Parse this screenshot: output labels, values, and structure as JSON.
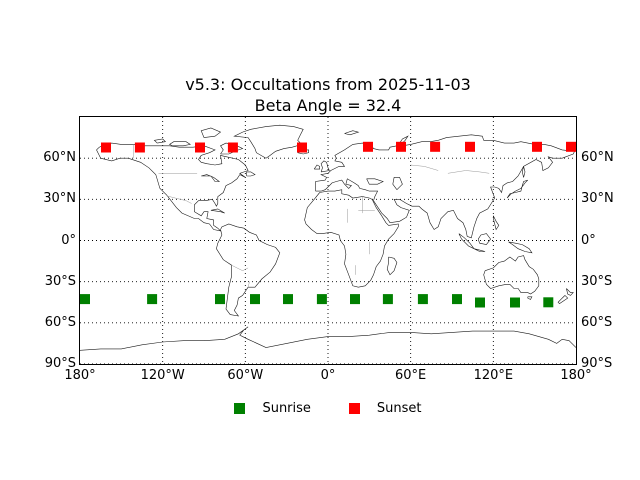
{
  "title": {
    "line1": "v5.3: Occultations from 2025-11-03",
    "line2": "Beta Angle = 32.4"
  },
  "axes": {
    "x_ticks": [
      {
        "label": "180°",
        "lon": -180
      },
      {
        "label": "120°W",
        "lon": -120
      },
      {
        "label": "60°W",
        "lon": -60
      },
      {
        "label": "0°",
        "lon": 0
      },
      {
        "label": "60°E",
        "lon": 60
      },
      {
        "label": "120°E",
        "lon": 120
      },
      {
        "label": "180°",
        "lon": 180
      }
    ],
    "y_ticks": [
      {
        "label": "60°N",
        "lat": 60
      },
      {
        "label": "30°N",
        "lat": 30
      },
      {
        "label": "0°",
        "lat": 0
      },
      {
        "label": "30°S",
        "lat": -30
      },
      {
        "label": "60°S",
        "lat": -60
      },
      {
        "label": "90°S",
        "lat": -90
      }
    ]
  },
  "legend": {
    "items": [
      {
        "label": "Sunrise",
        "color": "#008000"
      },
      {
        "label": "Sunset",
        "color": "#ff0000"
      }
    ]
  },
  "chart_data": {
    "type": "scatter",
    "title": "v5.3: Occultations from 2025-11-03",
    "subtitle": "Beta Angle = 32.4",
    "background": "equirectangular world map with coastlines and country borders",
    "xlim": [
      -180,
      180
    ],
    "ylim": [
      -90,
      90
    ],
    "grid": true,
    "grid_style": "dotted black",
    "x_tick_labels": [
      "180°",
      "120°W",
      "60°W",
      "0°",
      "60°E",
      "120°E",
      "180°"
    ],
    "y_tick_labels": [
      "60°N",
      "30°N",
      "0°",
      "30°S",
      "60°S",
      "90°S"
    ],
    "legend_position": "bottom center, no frame",
    "marker_size_px": 10,
    "series": [
      {
        "name": "Sunrise",
        "marker": "square",
        "color": "#008000",
        "points_lon_lat": [
          [
            -176.4,
            -42.7
          ],
          [
            -127.7,
            -42.7
          ],
          [
            -78.4,
            -42.7
          ],
          [
            -53.0,
            -42.7
          ],
          [
            -29.0,
            -42.7
          ],
          [
            -4.4,
            -42.7
          ],
          [
            19.6,
            -42.7
          ],
          [
            43.5,
            -42.7
          ],
          [
            68.9,
            -42.7
          ],
          [
            93.6,
            -42.7
          ],
          [
            110.3,
            -45.2
          ],
          [
            135.7,
            -45.2
          ],
          [
            159.9,
            -45.0
          ]
        ]
      },
      {
        "name": "Sunset",
        "marker": "square",
        "color": "#ff0000",
        "points_lon_lat": [
          [
            -161.1,
            67.8
          ],
          [
            -136.5,
            67.8
          ],
          [
            -92.9,
            67.8
          ],
          [
            -69.0,
            67.8
          ],
          [
            -18.9,
            67.8
          ],
          [
            29.0,
            68.3
          ],
          [
            53.0,
            68.3
          ],
          [
            77.7,
            68.3
          ],
          [
            103.1,
            68.3
          ],
          [
            151.7,
            68.3
          ],
          [
            176.4,
            68.3
          ]
        ]
      }
    ]
  }
}
